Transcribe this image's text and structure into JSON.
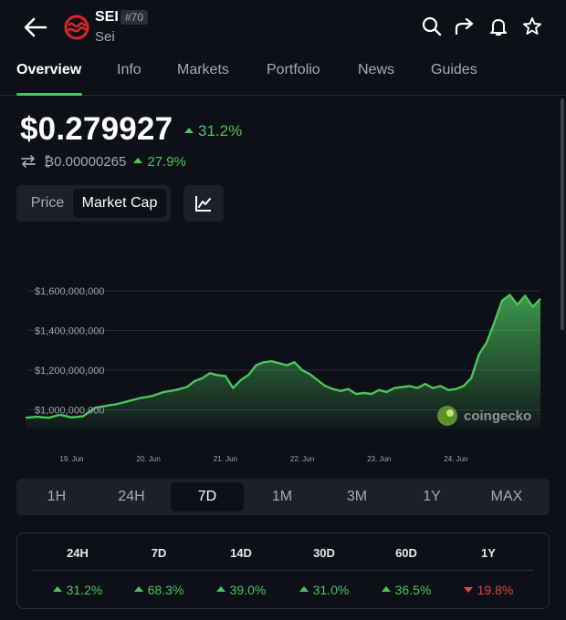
{
  "header": {
    "symbol": "SEI",
    "rank": "#70",
    "name": "Sei",
    "icons": [
      "back-arrow-icon",
      "search-icon",
      "share-icon",
      "bell-icon",
      "star-icon"
    ]
  },
  "tabs": [
    "Overview",
    "Info",
    "Markets",
    "Portfolio",
    "News",
    "Guides"
  ],
  "price": {
    "usd": "$0.279927",
    "usd_change": "31.2%",
    "btc": "₿0.00000265",
    "btc_change": "27.9%"
  },
  "toggle": {
    "price_label": "Price",
    "market_cap_label": "Market Cap"
  },
  "chart_data": {
    "type": "area",
    "y_ticks": [
      "$1,600,000,000",
      "$1,400,000,000",
      "$1,200,000,000",
      "$1,000,000,000"
    ],
    "x_ticks": [
      "19. Jun",
      "20. Jun",
      "21. Jun",
      "22. Jun",
      "23. Jun",
      "24. Jun"
    ],
    "ylim": [
      940000000,
      1620000000
    ],
    "x": [
      18.4,
      18.55,
      18.7,
      18.85,
      19.0,
      19.15,
      19.3,
      19.45,
      19.6,
      19.75,
      19.9,
      20.05,
      20.2,
      20.35,
      20.5,
      20.6,
      20.7,
      20.8,
      20.9,
      21.0,
      21.1,
      21.2,
      21.3,
      21.4,
      21.5,
      21.6,
      21.7,
      21.8,
      21.9,
      22.0,
      22.1,
      22.2,
      22.3,
      22.4,
      22.5,
      22.6,
      22.7,
      22.8,
      22.9,
      23.0,
      23.1,
      23.2,
      23.3,
      23.4,
      23.5,
      23.6,
      23.7,
      23.8,
      23.9,
      24.0,
      24.1,
      24.2,
      24.3,
      24.4,
      24.5,
      24.6,
      24.7,
      24.8,
      24.9,
      25.0,
      25.1
    ],
    "values": [
      960000000,
      965000000,
      960000000,
      975000000,
      962000000,
      968000000,
      1010000000,
      1020000000,
      1030000000,
      1045000000,
      1060000000,
      1070000000,
      1090000000,
      1100000000,
      1115000000,
      1145000000,
      1160000000,
      1185000000,
      1175000000,
      1170000000,
      1110000000,
      1150000000,
      1175000000,
      1225000000,
      1240000000,
      1245000000,
      1235000000,
      1225000000,
      1240000000,
      1200000000,
      1180000000,
      1150000000,
      1120000000,
      1105000000,
      1095000000,
      1105000000,
      1080000000,
      1085000000,
      1080000000,
      1100000000,
      1090000000,
      1110000000,
      1115000000,
      1120000000,
      1110000000,
      1130000000,
      1110000000,
      1120000000,
      1100000000,
      1105000000,
      1120000000,
      1160000000,
      1280000000,
      1340000000,
      1440000000,
      1550000000,
      1580000000,
      1530000000,
      1575000000,
      1520000000,
      1560000000
    ],
    "color": "#4cc45d",
    "watermark": "coingecko"
  },
  "ranges": {
    "items": [
      "1H",
      "24H",
      "7D",
      "1M",
      "3M",
      "1Y",
      "MAX"
    ],
    "selected": "7D"
  },
  "performance": {
    "headers": [
      "24H",
      "7D",
      "14D",
      "30D",
      "60D",
      "1Y"
    ],
    "values": [
      "31.2%",
      "68.3%",
      "39.0%",
      "31.0%",
      "36.5%",
      "19.8%"
    ],
    "directions": [
      "up",
      "up",
      "up",
      "up",
      "up",
      "down"
    ]
  },
  "colors": {
    "up": "#4cc45d",
    "down": "#e0453c",
    "background": "#0d1117",
    "panel": "#1c2129",
    "brand": "#d9252d"
  }
}
